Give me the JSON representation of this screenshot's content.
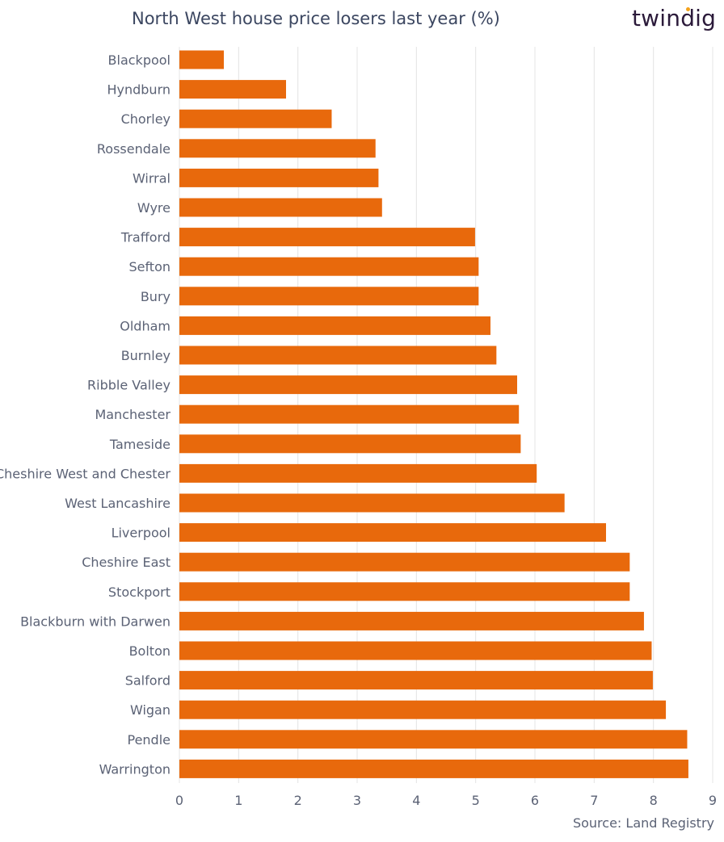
{
  "header": {
    "title": "North West house price losers last year (%)",
    "logo_text": "twindig"
  },
  "footer": {
    "source": "Source: Land Registry"
  },
  "colors": {
    "bar": "#e8690c",
    "grid": "#e4e4e4",
    "text": "#5b6275",
    "logo_dot": "#f4a21b"
  },
  "chart_data": {
    "type": "bar",
    "orientation": "horizontal",
    "title": "North West house price losers last year (%)",
    "xlabel": "",
    "ylabel": "",
    "xlim": [
      0,
      9
    ],
    "xticks": [
      "0",
      "1",
      "2",
      "3",
      "4",
      "5",
      "6",
      "7",
      "8",
      "9"
    ],
    "grid": true,
    "categories": [
      "Blackpool",
      "Hyndburn",
      "Chorley",
      "Rossendale",
      "Wirral",
      "Wyre",
      "Trafford",
      "Sefton",
      "Bury",
      "Oldham",
      "Burnley",
      "Ribble Valley",
      "Manchester",
      "Tameside",
      "Cheshire West and Chester",
      "West Lancashire",
      "Liverpool",
      "Cheshire East",
      "Stockport",
      "Blackburn with Darwen",
      "Bolton",
      "Salford",
      "Wigan",
      "Pendle",
      "Warrington"
    ],
    "values": [
      0.75,
      1.8,
      2.57,
      3.31,
      3.36,
      3.42,
      4.99,
      5.05,
      5.05,
      5.25,
      5.35,
      5.7,
      5.73,
      5.76,
      6.03,
      6.5,
      7.2,
      7.6,
      7.6,
      7.84,
      7.97,
      7.99,
      8.21,
      8.57,
      8.59
    ]
  }
}
